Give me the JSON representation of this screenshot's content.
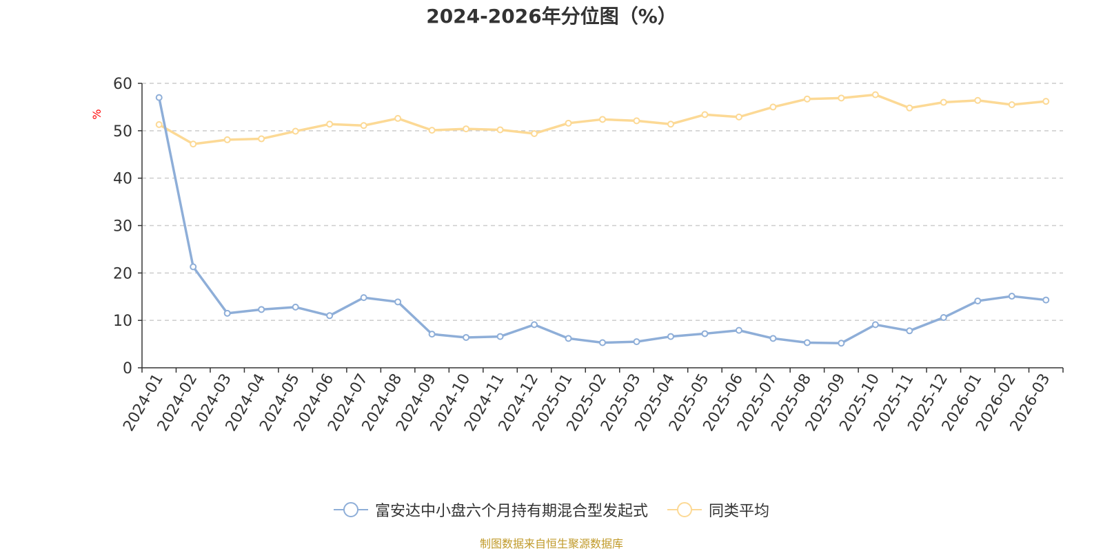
{
  "chart_data": {
    "type": "line",
    "title": "2024-2026年分位图（%）",
    "ylabel": "%",
    "xlabel": "",
    "ylim": [
      0,
      60
    ],
    "yticks": [
      0,
      10,
      20,
      30,
      40,
      50,
      60
    ],
    "grid": true,
    "legend_position": "bottom",
    "categories": [
      "2024-01",
      "2024-02",
      "2024-03",
      "2024-04",
      "2024-05",
      "2024-06",
      "2024-07",
      "2024-08",
      "2024-09",
      "2024-10",
      "2024-11",
      "2024-12",
      "2025-01",
      "2025-02",
      "2025-03",
      "2025-04",
      "2025-05",
      "2025-06",
      "2025-07",
      "2025-08",
      "2025-09",
      "2025-10",
      "2025-11",
      "2025-12",
      "2026-01",
      "2026-02",
      "2026-03"
    ],
    "series": [
      {
        "name": "富安达中小盘六个月持有期混合型发起式",
        "color": "#8eaed8",
        "values": [
          57.0,
          21.3,
          11.5,
          12.3,
          12.8,
          11.0,
          14.8,
          13.9,
          7.1,
          6.4,
          6.6,
          9.1,
          6.2,
          5.3,
          5.5,
          6.6,
          7.2,
          7.9,
          6.2,
          5.3,
          5.2,
          9.1,
          7.8,
          10.6,
          14.1,
          15.1,
          14.3
        ]
      },
      {
        "name": "同类平均",
        "color": "#fcd995",
        "values": [
          51.3,
          47.2,
          48.1,
          48.3,
          49.9,
          51.4,
          51.1,
          52.6,
          50.1,
          50.4,
          50.2,
          49.4,
          51.6,
          52.4,
          52.1,
          51.4,
          53.4,
          52.9,
          55.0,
          56.7,
          56.9,
          57.6,
          54.8,
          56.0,
          56.4,
          55.5,
          56.2
        ]
      }
    ]
  },
  "source_note": "制图数据来自恒生聚源数据库",
  "colors": {
    "axis": "#333333",
    "grid": "#cccccc",
    "ylabel": "#ff0000",
    "source_note": "#c09a2a"
  }
}
